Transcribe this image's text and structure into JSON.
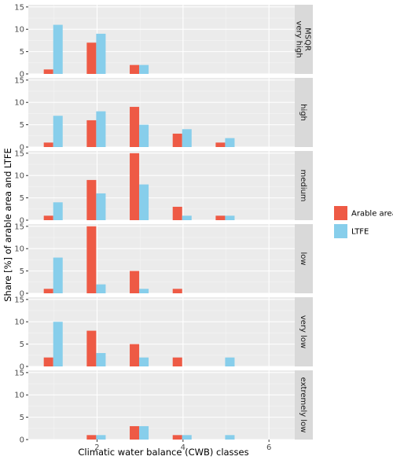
{
  "colors": {
    "arable": "#EE5A45",
    "ltfe": "#87CEEB",
    "panel_bg": "#EBEBEB",
    "strip_bg": "#D9D9D9",
    "grid_major": "#FFFFFF"
  },
  "chart_data": {
    "type": "bar",
    "xlabel": "Climatic water balance (CWB) classes",
    "ylabel": "Share [%] of arable area and LTFE",
    "x_ticks": [
      2,
      4,
      6
    ],
    "xlim": [
      0.4,
      6.6
    ],
    "y_ticks": [
      0,
      5,
      10,
      15
    ],
    "ylim": [
      0,
      15.5
    ],
    "legend": {
      "placement": "right",
      "entries": [
        {
          "name": "Arable area",
          "color_key": "arable"
        },
        {
          "name": "LTFE",
          "color_key": "ltfe"
        }
      ]
    },
    "facets": [
      {
        "label_lines": [
          "MSQR",
          "very high"
        ],
        "series": [
          {
            "name": "Arable area",
            "points": [
              {
                "x": 1,
                "y": 1
              },
              {
                "x": 2,
                "y": 7
              },
              {
                "x": 3,
                "y": 2
              }
            ]
          },
          {
            "name": "LTFE",
            "points": [
              {
                "x": 1,
                "y": 11
              },
              {
                "x": 2,
                "y": 9
              },
              {
                "x": 3,
                "y": 2
              }
            ]
          }
        ]
      },
      {
        "label_lines": [
          "high"
        ],
        "series": [
          {
            "name": "Arable area",
            "points": [
              {
                "x": 1,
                "y": 1
              },
              {
                "x": 2,
                "y": 6
              },
              {
                "x": 3,
                "y": 9
              },
              {
                "x": 4,
                "y": 3
              },
              {
                "x": 5,
                "y": 1
              }
            ]
          },
          {
            "name": "LTFE",
            "points": [
              {
                "x": 1,
                "y": 7
              },
              {
                "x": 2,
                "y": 8
              },
              {
                "x": 3,
                "y": 5
              },
              {
                "x": 4,
                "y": 4
              },
              {
                "x": 5,
                "y": 2
              }
            ]
          }
        ]
      },
      {
        "label_lines": [
          "medium"
        ],
        "series": [
          {
            "name": "Arable area",
            "points": [
              {
                "x": 1,
                "y": 1
              },
              {
                "x": 2,
                "y": 9
              },
              {
                "x": 3,
                "y": 15
              },
              {
                "x": 4,
                "y": 3
              },
              {
                "x": 5,
                "y": 1
              }
            ]
          },
          {
            "name": "LTFE",
            "points": [
              {
                "x": 1,
                "y": 4
              },
              {
                "x": 2,
                "y": 6
              },
              {
                "x": 3,
                "y": 8
              },
              {
                "x": 4,
                "y": 1
              },
              {
                "x": 5,
                "y": 1
              }
            ]
          }
        ]
      },
      {
        "label_lines": [
          "low"
        ],
        "series": [
          {
            "name": "Arable area",
            "points": [
              {
                "x": 1,
                "y": 1
              },
              {
                "x": 2,
                "y": 15
              },
              {
                "x": 3,
                "y": 5
              },
              {
                "x": 4,
                "y": 1
              }
            ]
          },
          {
            "name": "LTFE",
            "points": [
              {
                "x": 1,
                "y": 8
              },
              {
                "x": 2,
                "y": 2
              },
              {
                "x": 3,
                "y": 1
              }
            ]
          }
        ]
      },
      {
        "label_lines": [
          "very low"
        ],
        "series": [
          {
            "name": "Arable area",
            "points": [
              {
                "x": 1,
                "y": 2
              },
              {
                "x": 2,
                "y": 8
              },
              {
                "x": 3,
                "y": 5
              },
              {
                "x": 4,
                "y": 2
              }
            ]
          },
          {
            "name": "LTFE",
            "points": [
              {
                "x": 1,
                "y": 10
              },
              {
                "x": 2,
                "y": 3
              },
              {
                "x": 3,
                "y": 2
              },
              {
                "x": 5,
                "y": 2
              }
            ]
          }
        ]
      },
      {
        "label_lines": [
          "extremely low"
        ],
        "series": [
          {
            "name": "Arable area",
            "points": [
              {
                "x": 2,
                "y": 1
              },
              {
                "x": 3,
                "y": 3
              },
              {
                "x": 4,
                "y": 1
              }
            ]
          },
          {
            "name": "LTFE",
            "points": [
              {
                "x": 2,
                "y": 1
              },
              {
                "x": 3,
                "y": 3
              },
              {
                "x": 4,
                "y": 1
              },
              {
                "x": 5,
                "y": 1
              }
            ]
          }
        ]
      }
    ]
  }
}
